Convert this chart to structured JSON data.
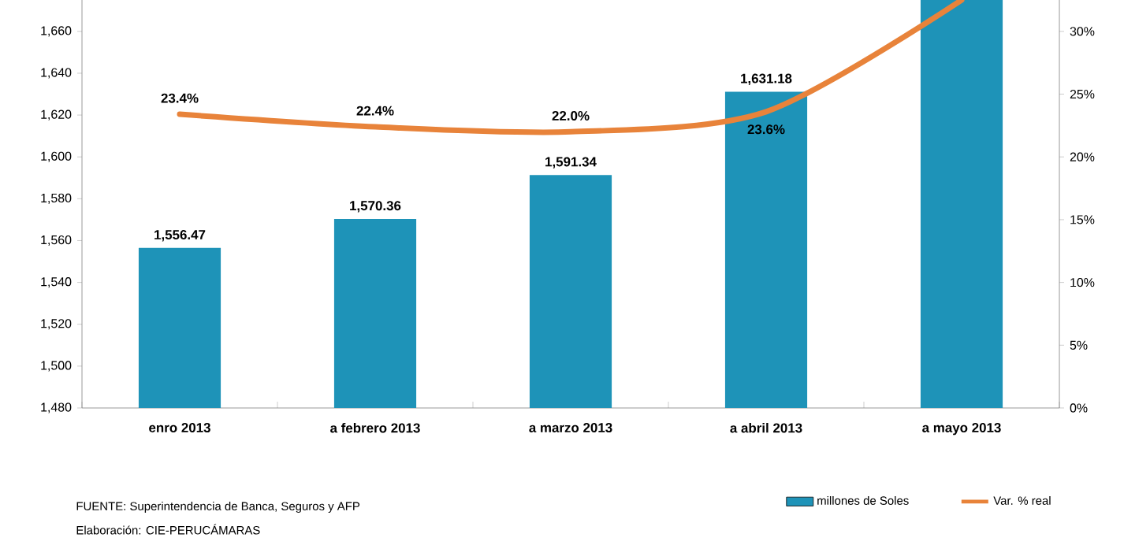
{
  "chart_data": {
    "type": "bar",
    "categories": [
      "enro 2013",
      "a febrero 2013",
      "a marzo 2013",
      "a abril 2013",
      "a mayo 2013"
    ],
    "series": [
      {
        "name": "millones de Soles",
        "axis": "y",
        "color": "#1e93b8",
        "values": [
          1556.47,
          1570.36,
          1591.34,
          1631.18,
          1675
        ],
        "value_labels": [
          "1,556.47",
          "1,570.36",
          "1,591.34",
          "1,631.18",
          null
        ]
      },
      {
        "name": "Var. % real",
        "type": "line",
        "axis": "y2",
        "color": "#e8833a",
        "line_style": "solid",
        "values": [
          23.4,
          22.4,
          22.0,
          23.6,
          32.5
        ],
        "value_labels": [
          "23.4%",
          "22.4%",
          "22.0%",
          "23.6%",
          null
        ]
      }
    ],
    "ylim": [
      1480,
      1675
    ],
    "yticks": [
      {
        "value": 1480,
        "label": "1,480"
      },
      {
        "value": 1500,
        "label": "1,500"
      },
      {
        "value": 1520,
        "label": "1,520"
      },
      {
        "value": 1540,
        "label": "1,540"
      },
      {
        "value": 1560,
        "label": "1,560"
      },
      {
        "value": 1580,
        "label": "1,580"
      },
      {
        "value": 1600,
        "label": "1,600"
      },
      {
        "value": 1620,
        "label": "1,620"
      },
      {
        "value": 1640,
        "label": "1,640"
      },
      {
        "value": 1660,
        "label": "1,660"
      }
    ],
    "y2lim": [
      0,
      32.5
    ],
    "y2ticks": [
      {
        "value": 0,
        "label": "0%"
      },
      {
        "value": 5,
        "label": "5%"
      },
      {
        "value": 10,
        "label": "10%"
      },
      {
        "value": 15,
        "label": "15%"
      },
      {
        "value": 20,
        "label": "20%"
      },
      {
        "value": 25,
        "label": "25%"
      },
      {
        "value": 30,
        "label": "30%"
      }
    ],
    "grid": false,
    "legend": "bottom right",
    "annotations": [
      "FUENTE: Superintendencia  de Banca, Seguros y AFP",
      "Elaboración: CIE-PERUCÁMARAS"
    ]
  }
}
